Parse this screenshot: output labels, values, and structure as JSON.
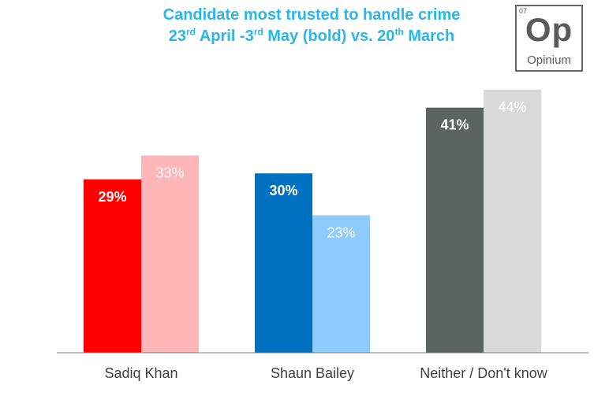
{
  "title": {
    "line1": "Candidate most trusted to handle crime",
    "line2": {
      "a": "23",
      "a_sup": "rd",
      "b": " April -3",
      "b_sup": "rd",
      "c": " May (bold) vs. 20",
      "c_sup": "th",
      "d": " March"
    }
  },
  "logo": {
    "number": "07",
    "symbol": "Op",
    "name": "Opinium"
  },
  "chart_data": {
    "type": "bar",
    "categories": [
      "Sadiq Khan",
      "Shaun Bailey",
      "Neither / Don't know"
    ],
    "series": [
      {
        "values": [
          29,
          30,
          41
        ],
        "labels": [
          "29%",
          "30%",
          "41%"
        ],
        "colors": [
          "#ff0000",
          "#0070c0",
          "#5b6460"
        ]
      },
      {
        "values": [
          33,
          23,
          44
        ],
        "labels": [
          "33%",
          "23%",
          "44%"
        ],
        "colors": [
          "#ffb6b6",
          "#8ecbff",
          "#d9d9d9"
        ]
      }
    ],
    "ylim": [
      0,
      45
    ],
    "grid": false
  }
}
